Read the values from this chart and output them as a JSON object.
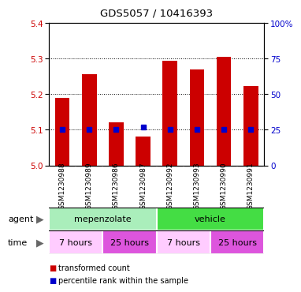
{
  "title": "GDS5057 / 10416393",
  "samples": [
    "GSM1230988",
    "GSM1230989",
    "GSM1230986",
    "GSM1230987",
    "GSM1230992",
    "GSM1230993",
    "GSM1230990",
    "GSM1230991"
  ],
  "red_values": [
    5.19,
    5.255,
    5.12,
    5.08,
    5.293,
    5.27,
    5.305,
    5.223
  ],
  "blue_values": [
    25,
    25,
    25,
    27,
    25,
    25,
    25,
    25
  ],
  "ylim_left": [
    5.0,
    5.4
  ],
  "ylim_right": [
    0,
    100
  ],
  "yticks_left": [
    5.0,
    5.1,
    5.2,
    5.3,
    5.4
  ],
  "yticks_right": [
    0,
    25,
    50,
    75,
    100
  ],
  "ytick_labels_right": [
    "0",
    "25",
    "50",
    "75",
    "100%"
  ],
  "red_color": "#cc0000",
  "blue_color": "#0000cc",
  "bar_width": 0.55,
  "agent_labels": [
    "mepenzolate",
    "vehicle"
  ],
  "agent_color_light": "#aaeebb",
  "agent_color_bright": "#44dd44",
  "time_labels": [
    "7 hours",
    "25 hours",
    "7 hours",
    "25 hours"
  ],
  "time_color_light": "#ffccff",
  "time_color_bright": "#dd55dd",
  "legend_red": "transformed count",
  "legend_blue": "percentile rank within the sample",
  "bg_color": "#d8d8d8",
  "plot_bg": "#ffffff"
}
